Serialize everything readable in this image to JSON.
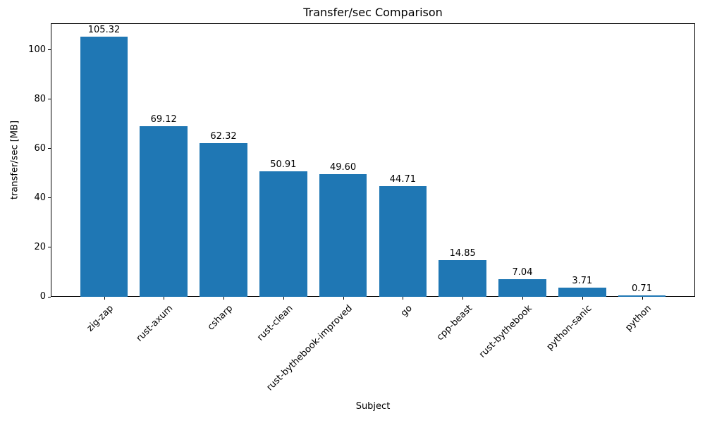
{
  "chart_data": {
    "type": "bar",
    "title": "Transfer/sec Comparison",
    "xlabel": "Subject",
    "ylabel": "transfer/sec [MB]",
    "categories": [
      "zig-zap",
      "rust-axum",
      "csharp",
      "rust-clean",
      "rust-bythebook-improved",
      "go",
      "cpp-beast",
      "rust-bythebook",
      "python-sanic",
      "python"
    ],
    "values": [
      105.32,
      69.12,
      62.32,
      50.91,
      49.6,
      44.71,
      14.85,
      7.04,
      3.71,
      0.71
    ],
    "value_labels": [
      "105.32",
      "69.12",
      "62.32",
      "50.91",
      "49.60",
      "44.71",
      "14.85",
      "7.04",
      "3.71",
      "0.71"
    ],
    "y_ticks": [
      0,
      20,
      40,
      60,
      80,
      100
    ],
    "ylim": [
      0,
      110.77
    ],
    "bar_color": "#1f77b4",
    "grid": false,
    "legend": null,
    "tick_label_rotation_deg": 45
  }
}
